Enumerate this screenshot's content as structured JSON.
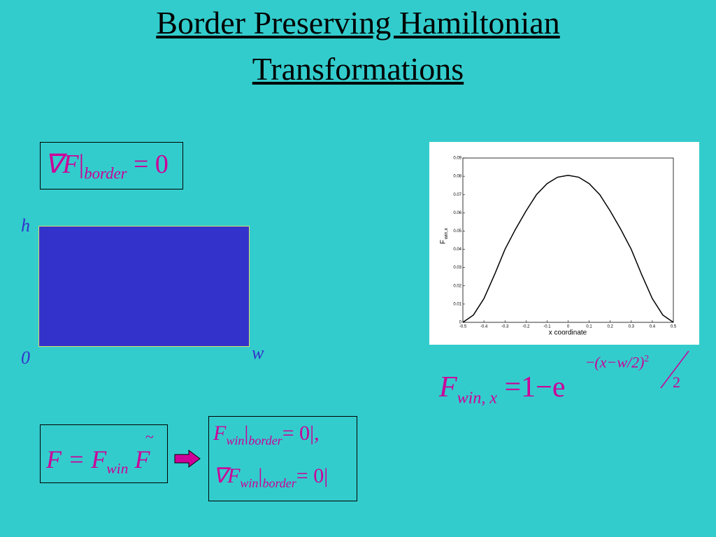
{
  "title": {
    "line1": "Border Preserving Hamiltonian",
    "line2": "Transformations"
  },
  "gradient_condition": {
    "lhs": "∇F",
    "sub": "border",
    "rhs": "= 0"
  },
  "domain": {
    "h": "h",
    "origin": "0",
    "w": "w"
  },
  "window_formula": {
    "F": "F",
    "sub": "win, x",
    "rhs": "=1−e",
    "exp_open": "−",
    "exp": "(x−w/2)",
    "exp_sq": "2",
    "denom": "2"
  },
  "factorization": {
    "lhs": "F = F",
    "sub": "win",
    "tilde": "~",
    "F": "F"
  },
  "conditions": {
    "line1": {
      "F": "F",
      "sub": "win",
      "bar": "|",
      "border": "border",
      "rhs": "= 0|,"
    },
    "line2": {
      "F": "∇F",
      "sub": "win",
      "bar": "|",
      "border": "border",
      "rhs": "= 0|"
    }
  },
  "chart_data": {
    "type": "line",
    "xlabel": "x coordinate",
    "ylabel": "F",
    "ylabel_sub": "win,x",
    "x": [
      -0.5,
      -0.45,
      -0.4,
      -0.35,
      -0.3,
      -0.25,
      -0.2,
      -0.15,
      -0.1,
      -0.05,
      0,
      0.05,
      0.1,
      0.15,
      0.2,
      0.25,
      0.3,
      0.35,
      0.4,
      0.45,
      0.5
    ],
    "series": [
      {
        "color": "#000000",
        "values": [
          0,
          0.004,
          0.013,
          0.026,
          0.04,
          0.051,
          0.061,
          0.07,
          0.076,
          0.0795,
          0.0805,
          0.0795,
          0.076,
          0.07,
          0.061,
          0.051,
          0.04,
          0.026,
          0.013,
          0.004,
          0
        ]
      }
    ],
    "xlim": [
      -0.5,
      0.5
    ],
    "ylim": [
      0,
      0.09
    ],
    "xticks": [
      -0.5,
      -0.4,
      -0.3,
      -0.2,
      -0.1,
      0,
      0.1,
      0.2,
      0.3,
      0.4,
      0.5
    ],
    "yticks": [
      0,
      0.01,
      0.02,
      0.03,
      0.04,
      0.05,
      0.06,
      0.07,
      0.08,
      0.09
    ]
  }
}
